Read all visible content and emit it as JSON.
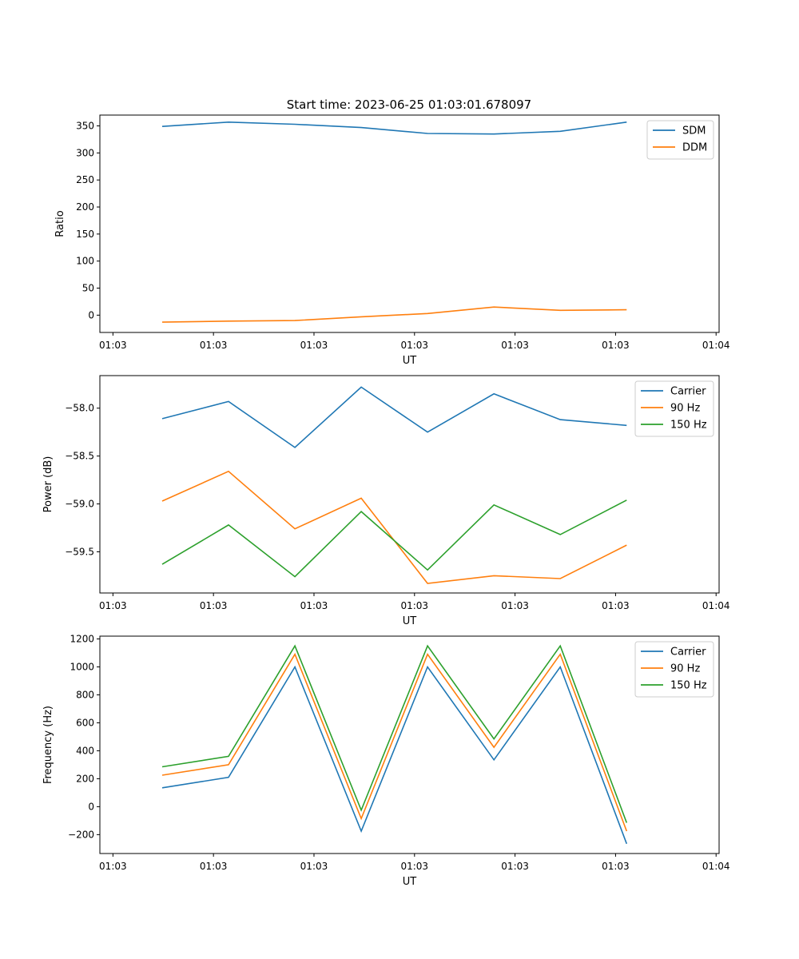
{
  "chart_data": [
    {
      "type": "line",
      "title": "Start time: 2023-06-25 01:03:01.678097",
      "xlabel": "UT",
      "ylabel": "Ratio",
      "x_tick_labels": [
        "01:03",
        "01:03",
        "01:03",
        "01:03",
        "01:03",
        "01:03",
        "01:04"
      ],
      "x_ticks": [
        0,
        1,
        2,
        3,
        4,
        5,
        6
      ],
      "x": [
        0.49,
        1.15,
        1.81,
        2.47,
        3.13,
        3.79,
        4.45,
        5.11
      ],
      "xlim": [
        -0.13,
        6.03
      ],
      "ylim": [
        -32,
        370
      ],
      "y_ticks": [
        0,
        50,
        100,
        150,
        200,
        250,
        300,
        350
      ],
      "y_tick_labels": [
        "0",
        "50",
        "100",
        "150",
        "200",
        "250",
        "300",
        "350"
      ],
      "legend": "top-right",
      "series": [
        {
          "name": "SDM",
          "color": "#1f77b4",
          "values": [
            349,
            357,
            353,
            347,
            336,
            335,
            340,
            357
          ]
        },
        {
          "name": "DDM",
          "color": "#ff7f0e",
          "values": [
            -13,
            -11,
            -10,
            -3,
            3,
            15,
            9,
            10
          ]
        }
      ]
    },
    {
      "type": "line",
      "xlabel": "UT",
      "ylabel": "Power (dB)",
      "x_tick_labels": [
        "01:03",
        "01:03",
        "01:03",
        "01:03",
        "01:03",
        "01:03",
        "01:04"
      ],
      "x_ticks": [
        0,
        1,
        2,
        3,
        4,
        5,
        6
      ],
      "x": [
        0.49,
        1.15,
        1.81,
        2.47,
        3.13,
        3.79,
        4.45,
        5.11
      ],
      "xlim": [
        -0.13,
        6.03
      ],
      "ylim": [
        -59.93,
        -57.66
      ],
      "y_ticks": [
        -59.5,
        -59.0,
        -58.5,
        -58.0
      ],
      "y_tick_labels": [
        "−59.5",
        "−59.0",
        "−58.5",
        "−58.0"
      ],
      "legend": "top-right",
      "series": [
        {
          "name": "Carrier",
          "color": "#1f77b4",
          "values": [
            -58.11,
            -57.93,
            -58.41,
            -57.78,
            -58.25,
            -57.85,
            -58.12,
            -58.18
          ]
        },
        {
          "name": "90 Hz",
          "color": "#ff7f0e",
          "values": [
            -58.97,
            -58.66,
            -59.26,
            -58.94,
            -59.83,
            -59.75,
            -59.78,
            -59.43
          ]
        },
        {
          "name": "150 Hz",
          "color": "#2ca02c",
          "values": [
            -59.63,
            -59.22,
            -59.76,
            -59.08,
            -59.69,
            -59.01,
            -59.32,
            -58.96
          ]
        }
      ]
    },
    {
      "type": "line",
      "xlabel": "UT",
      "ylabel": "Frequency (Hz)",
      "x_tick_labels": [
        "01:03",
        "01:03",
        "01:03",
        "01:03",
        "01:03",
        "01:03",
        "01:04"
      ],
      "x_ticks": [
        0,
        1,
        2,
        3,
        4,
        5,
        6
      ],
      "x": [
        0.49,
        1.15,
        1.81,
        2.47,
        3.13,
        3.79,
        4.45,
        5.11
      ],
      "xlim": [
        -0.13,
        6.03
      ],
      "ylim": [
        -335,
        1220
      ],
      "y_ticks": [
        -200,
        0,
        200,
        400,
        600,
        800,
        1000,
        1200
      ],
      "y_tick_labels": [
        "−200",
        "0",
        "200",
        "400",
        "600",
        "800",
        "1000",
        "1200"
      ],
      "legend": "top-right",
      "series": [
        {
          "name": "Carrier",
          "color": "#1f77b4",
          "values": [
            135,
            210,
            1000,
            -175,
            1000,
            335,
            1000,
            -265
          ]
        },
        {
          "name": "90 Hz",
          "color": "#ff7f0e",
          "values": [
            225,
            300,
            1090,
            -85,
            1090,
            425,
            1090,
            -175
          ]
        },
        {
          "name": "150 Hz",
          "color": "#2ca02c",
          "values": [
            285,
            360,
            1150,
            -25,
            1150,
            485,
            1150,
            -115
          ]
        }
      ]
    }
  ]
}
